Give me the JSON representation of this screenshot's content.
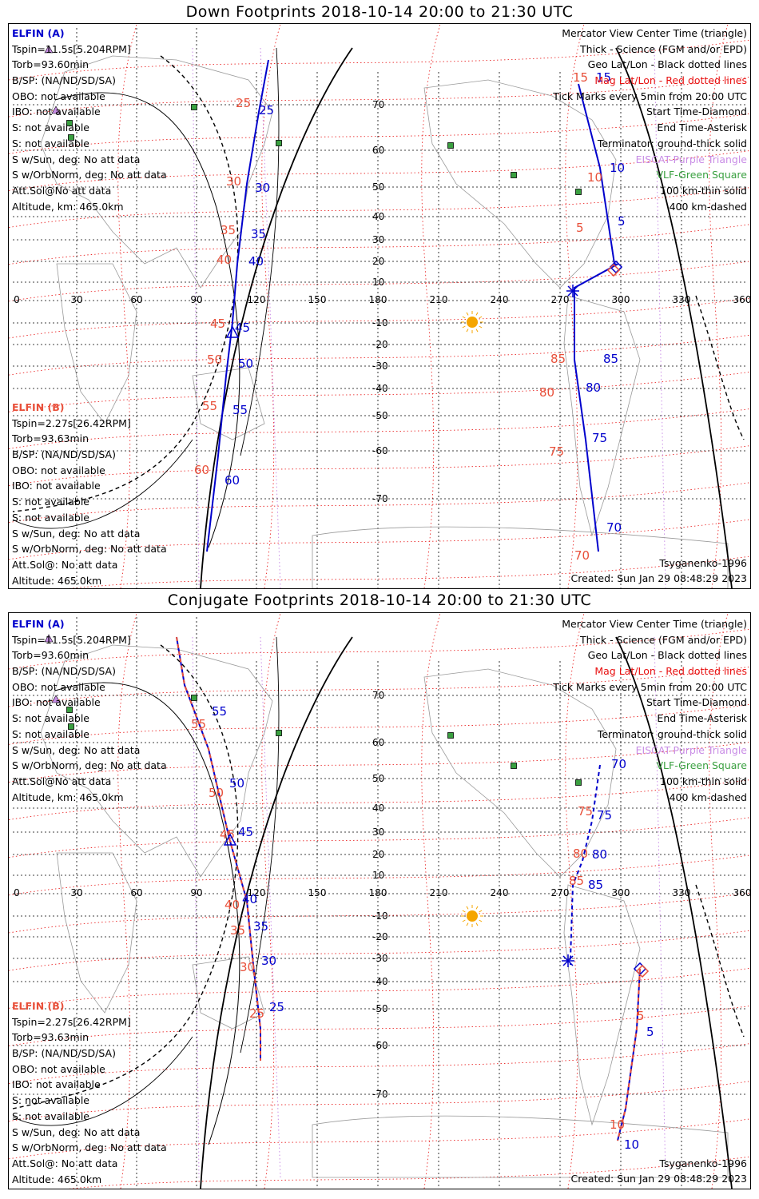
{
  "panels": [
    {
      "title": "Down Footprints 2018-10-14 20:00 to 21:30 UTC",
      "elfin_a": {
        "header": "ELFIN (A)",
        "lines": [
          "Tspin=11.5s[5.204RPM]",
          "Torb=93.60min",
          "B/SP: (NA/ND/SD/SA)",
          "OBO: not available",
          "IBO: not available",
          "S: not available",
          "S: not available",
          "S w/Sun, deg: No att data",
          "S w/OrbNorm, deg: No att data",
          "Att.Sol@No att data",
          "Altitude, km: 465.0km"
        ]
      },
      "elfin_b": {
        "header": "ELFIN (B)",
        "lines": [
          "Tspin=2.27s[26.42RPM]",
          "Torb=93.63min",
          "B/SP: (NA/ND/SD/SA)",
          "OBO: not available",
          "IBO: not available",
          "S: not available",
          "S: not available",
          "S w/Sun, deg: No att data",
          "S w/OrbNorm, deg: No att data",
          "Att.Sol@: No att data",
          "Altitude: 465.0km"
        ]
      },
      "legend": [
        "Mercator View Center Time (triangle)",
        "Thick - Science (FGM and/or EPD)",
        "Geo Lat/Lon - Black dotted lines",
        "Mag Lat/Lon - Red dotted lines",
        "Tick Marks every 5min from 20:00 UTC",
        "Start Time-Diamond",
        "End Time-Asterisk",
        "Terminator: ground-thick solid",
        "EISCAT-Purple Triangle",
        "VLF-Green Square",
        "100 km-thin solid",
        "400 km-dashed"
      ],
      "model": "Tsyganenko-1996",
      "created": "Created: Sun Jan 29 08:48:29 2023",
      "lon_labels": [
        "0",
        "30",
        "60",
        "90",
        "120",
        "150",
        "180",
        "210",
        "240",
        "270",
        "300",
        "330",
        "360"
      ],
      "lat_labels": [
        "70",
        "60",
        "50",
        "40",
        "30",
        "20",
        "10",
        "-10",
        "-20",
        "-30",
        "-40",
        "-50",
        "-60",
        "-70"
      ],
      "track_a_labels": [
        "25",
        "30",
        "35",
        "40",
        "45",
        "50",
        "55",
        "60"
      ],
      "track_b_labels": [
        "15",
        "10",
        "5",
        "85",
        "80",
        "75",
        "70"
      ],
      "track_a_mag_labels": [
        "25",
        "30",
        "35",
        "40",
        "45",
        "50",
        "55",
        "60"
      ],
      "track_b_mag_labels": [
        "15",
        "10",
        "5",
        "85",
        "80",
        "75",
        "70"
      ]
    },
    {
      "title": "Conjugate Footprints 2018-10-14 20:00 to 21:30 UTC",
      "elfin_a": {
        "header": "ELFIN (A)",
        "lines": [
          "Tspin=11.5s[5.204RPM]",
          "Torb=93.60min",
          "B/SP: (NA/ND/SD/SA)",
          "OBO: not available",
          "IBO: not available",
          "S: not available",
          "S: not available",
          "S w/Sun, deg: No att data",
          "S w/OrbNorm, deg: No att data",
          "Att.Sol@No att data",
          "Altitude, km: 465.0km"
        ]
      },
      "elfin_b": {
        "header": "ELFIN (B)",
        "lines": [
          "Tspin=2.27s[26.42RPM]",
          "Torb=93.63min",
          "B/SP: (NA/ND/SD/SA)",
          "OBO: not available",
          "IBO: not available",
          "S: not available",
          "S: not available",
          "S w/Sun, deg: No att data",
          "S w/OrbNorm, deg: No att data",
          "Att.Sol@: No att data",
          "Altitude: 465.0km"
        ]
      },
      "legend": [
        "Mercator View Center Time (triangle)",
        "Thick - Science (FGM and/or EPD)",
        "Geo Lat/Lon - Black dotted lines",
        "Mag Lat/Lon - Red dotted lines",
        "Tick Marks every 5min from 20:00 UTC",
        "Start Time-Diamond",
        "End Time-Asterisk",
        "Terminator: ground-thick solid",
        "EISCAT-Purple Triangle",
        "VLF-Green Square",
        "100 km-thin solid",
        "400 km-dashed"
      ],
      "model": "Tsyganenko-1996",
      "created": "Created: Sun Jan 29 08:48:29 2023",
      "lon_labels": [
        "0",
        "30",
        "60",
        "90",
        "120",
        "150",
        "180",
        "210",
        "240",
        "270",
        "300",
        "330",
        "360"
      ],
      "lat_labels": [
        "70",
        "60",
        "50",
        "40",
        "30",
        "20",
        "10",
        "-10",
        "-20",
        "-30",
        "-40",
        "-50",
        "-60",
        "-70"
      ],
      "track_a_labels": [
        "55",
        "50",
        "45",
        "40",
        "35",
        "30",
        "25"
      ],
      "track_b_labels": [
        "70",
        "75",
        "80",
        "85",
        "5",
        "10"
      ],
      "track_a_mag_labels": [
        "55",
        "50",
        "45",
        "40",
        "35",
        "30",
        "25"
      ],
      "track_b_mag_labels": [
        "75",
        "80",
        "85",
        "5",
        "10"
      ]
    }
  ],
  "colors": {
    "track": "#0000cc",
    "mag": "#e8503a",
    "grid_mag": "#e81010",
    "purple": "#c98de6",
    "green": "#3aa040",
    "sun": "#f5a500"
  }
}
